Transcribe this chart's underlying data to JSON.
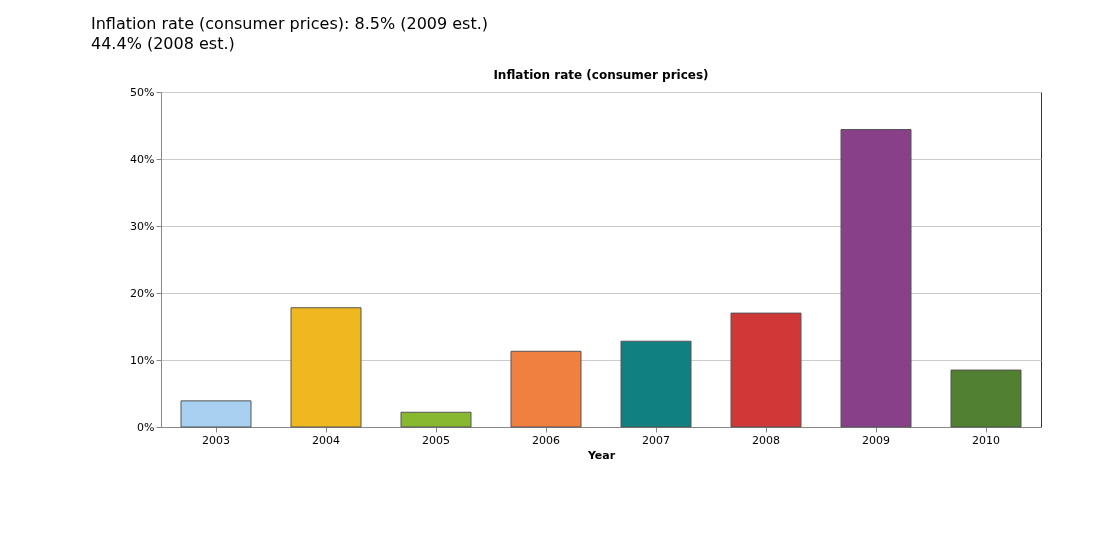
{
  "chart_data": {
    "type": "bar",
    "title": "Inflation rate (consumer prices)",
    "xlabel": "Year",
    "annotations": [
      "Inflation rate (consumer prices): 8.5% (2009 est.)",
      "44.4% (2008 est.)"
    ],
    "categories": [
      "2003",
      "2004",
      "2005",
      "2006",
      "2007",
      "2008",
      "2009",
      "2010"
    ],
    "values": [
      3.9,
      17.8,
      2.2,
      11.3,
      12.8,
      17.0,
      44.4,
      8.5
    ],
    "colors": [
      "#a8d0f0",
      "#f0b820",
      "#88b830",
      "#f08040",
      "#108080",
      "#d03838",
      "#884088",
      "#508030"
    ],
    "ylim": [
      0,
      50
    ],
    "yticks": [
      {
        "value": 0,
        "label": "0%"
      },
      {
        "value": 10,
        "label": "10%"
      },
      {
        "value": 20,
        "label": "20%"
      },
      {
        "value": 30,
        "label": "30%"
      },
      {
        "value": 40,
        "label": "40%"
      },
      {
        "value": 50,
        "label": "50%"
      }
    ],
    "grid": "y"
  }
}
